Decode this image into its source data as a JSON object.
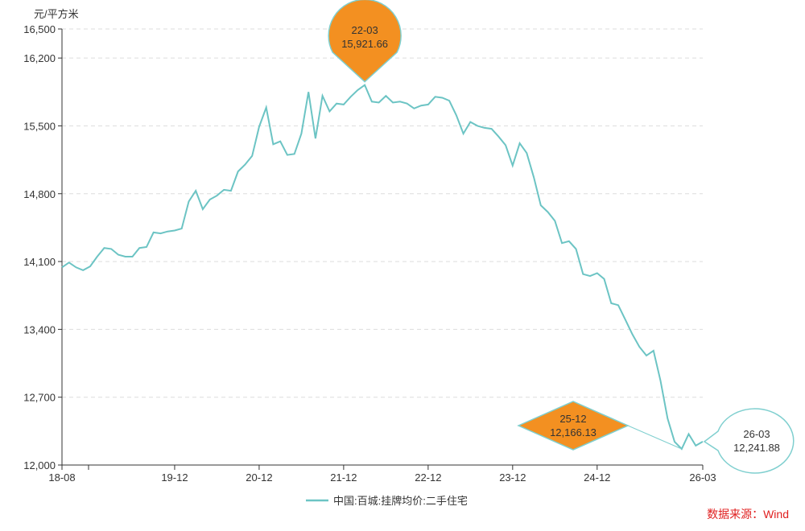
{
  "chart_data": {
    "type": "line",
    "ylabel": "元/平方米",
    "ylim": [
      12000,
      16500
    ],
    "yticks": [
      "12,000",
      "12,700",
      "13,400",
      "14,100",
      "14,800",
      "15,500",
      "16,200",
      "16,500"
    ],
    "ytick_values": [
      12000,
      12700,
      13400,
      14100,
      14800,
      15500,
      16200,
      16500
    ],
    "xlim": [
      "2018-08",
      "2026-03"
    ],
    "xticks": [
      "18-08",
      "19-12",
      "20-12",
      "21-12",
      "22-12",
      "23-12",
      "24-12",
      "26-03"
    ],
    "xtick_dates": [
      "2018-08",
      "2019-12",
      "2020-12",
      "2021-12",
      "2022-12",
      "2023-12",
      "2024-12",
      "2026-03"
    ],
    "grid": "horizontal-dashed",
    "legend_position": "bottom",
    "series": [
      {
        "name": "中国:百城:挂牌均价:二手住宅",
        "color": "#6cc4c4",
        "x": [
          "2018-08",
          "2018-09",
          "2018-10",
          "2018-11",
          "2018-12",
          "2019-01",
          "2019-02",
          "2019-03",
          "2019-04",
          "2019-05",
          "2019-06",
          "2019-07",
          "2019-08",
          "2019-09",
          "2019-10",
          "2019-11",
          "2019-12",
          "2020-01",
          "2020-02",
          "2020-03",
          "2020-04",
          "2020-05",
          "2020-06",
          "2020-07",
          "2020-08",
          "2020-09",
          "2020-10",
          "2020-11",
          "2020-12",
          "2021-01",
          "2021-02",
          "2021-03",
          "2021-04",
          "2021-05",
          "2021-06",
          "2021-07",
          "2021-08",
          "2021-09",
          "2021-10",
          "2021-11",
          "2021-12",
          "2022-01",
          "2022-02",
          "2022-03",
          "2022-04",
          "2022-05",
          "2022-06",
          "2022-07",
          "2022-08",
          "2022-09",
          "2022-10",
          "2022-11",
          "2022-12",
          "2023-01",
          "2023-02",
          "2023-03",
          "2023-04",
          "2023-05",
          "2023-06",
          "2023-07",
          "2023-08",
          "2023-09",
          "2023-10",
          "2023-11",
          "2023-12",
          "2024-01",
          "2024-02",
          "2024-03",
          "2024-04",
          "2024-05",
          "2024-06",
          "2024-07",
          "2024-08",
          "2024-09",
          "2024-10",
          "2024-11",
          "2024-12",
          "2025-01",
          "2025-02",
          "2025-03",
          "2025-04",
          "2025-05",
          "2025-06",
          "2025-07",
          "2025-08",
          "2025-09",
          "2025-10",
          "2025-11",
          "2025-12",
          "2026-01",
          "2026-02",
          "2026-03"
        ],
        "values": [
          14040,
          14090,
          14040,
          14010,
          14050,
          14150,
          14240,
          14230,
          14170,
          14150,
          14150,
          14240,
          14250,
          14400,
          14390,
          14410,
          14420,
          14440,
          14720,
          14830,
          14640,
          14740,
          14780,
          14840,
          14830,
          15030,
          15100,
          15190,
          15490,
          15690,
          15310,
          15340,
          15200,
          15210,
          15420,
          15850,
          15370,
          15810,
          15650,
          15730,
          15720,
          15800,
          15870,
          15921.66,
          15750,
          15740,
          15810,
          15740,
          15750,
          15730,
          15680,
          15710,
          15720,
          15800,
          15790,
          15760,
          15610,
          15420,
          15540,
          15500,
          15480,
          15470,
          15390,
          15300,
          15090,
          15320,
          15220,
          14970,
          14680,
          14610,
          14520,
          14290,
          14310,
          14230,
          13970,
          13950,
          13980,
          13920,
          13670,
          13650,
          13500,
          13350,
          13220,
          13130,
          13180,
          12870,
          12480,
          12240,
          12166.13,
          12320,
          12200,
          12241.88
        ]
      }
    ],
    "annotations": [
      {
        "date": "22-03",
        "value": "15,921.66",
        "shape": "pin"
      },
      {
        "date": "25-12",
        "value": "12,166.13",
        "shape": "diamond"
      },
      {
        "date": "26-03",
        "value": "12,241.88",
        "shape": "bubble"
      }
    ],
    "source": "数据来源：Wind"
  }
}
